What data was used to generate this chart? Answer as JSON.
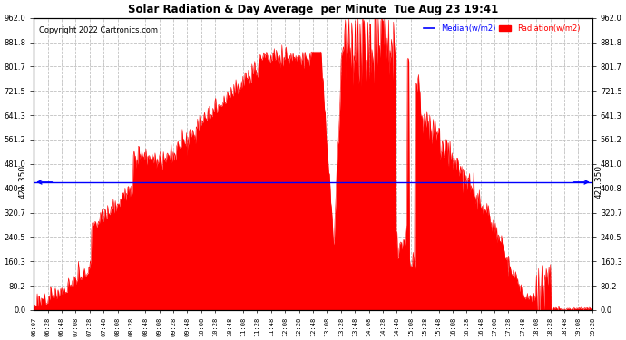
{
  "title": "Solar Radiation & Day Average  per Minute  Tue Aug 23 19:41",
  "copyright": "Copyright 2022 Cartronics.com",
  "legend_median": "Median(w/m2)",
  "legend_radiation": "Radiation(w/m2)",
  "median_value": 421.35,
  "median_label": "421.350",
  "ymin": 0.0,
  "ymax": 962.0,
  "ytick_vals": [
    0.0,
    80.2,
    160.3,
    240.5,
    320.7,
    400.8,
    481.0,
    561.2,
    641.3,
    721.5,
    801.7,
    881.8,
    962.0
  ],
  "ytick_labels": [
    "0.0",
    "80.2",
    "160.3",
    "240.5",
    "320.7",
    "400.8",
    "481.0",
    "561.2",
    "641.3",
    "721.5",
    "801.7",
    "881.8",
    "962.0"
  ],
  "background_color": "#ffffff",
  "fill_color": "#ff0000",
  "median_line_color": "#0000ff",
  "grid_color": "#c0c0c0",
  "title_color": "#000000",
  "copyright_color": "#000000",
  "legend_median_color": "#0000ff",
  "legend_radiation_color": "#ff0000",
  "xtick_labels": [
    "06:07",
    "06:28",
    "06:48",
    "07:08",
    "07:28",
    "07:48",
    "08:08",
    "08:28",
    "08:48",
    "09:08",
    "09:28",
    "09:48",
    "10:08",
    "10:28",
    "10:48",
    "11:08",
    "11:28",
    "11:48",
    "12:08",
    "12:28",
    "12:48",
    "13:08",
    "13:28",
    "13:48",
    "14:08",
    "14:28",
    "14:48",
    "15:08",
    "15:28",
    "15:48",
    "16:08",
    "16:28",
    "16:48",
    "17:08",
    "17:28",
    "17:48",
    "18:08",
    "18:28",
    "18:48",
    "19:08",
    "19:28"
  ]
}
